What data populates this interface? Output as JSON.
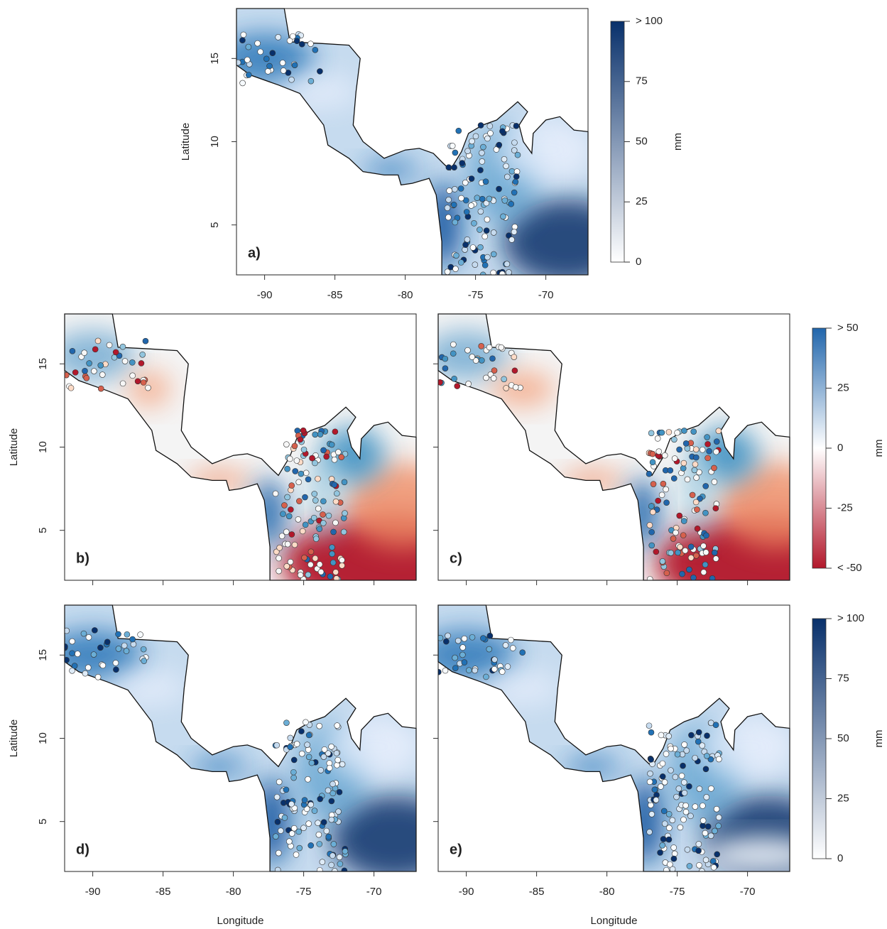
{
  "panels": [
    {
      "label": "a)"
    },
    {
      "label": "b)"
    },
    {
      "label": "c)"
    },
    {
      "label": "d)"
    },
    {
      "label": "e)"
    }
  ],
  "x_axis": {
    "title": "Longitude",
    "xlim": [
      -92,
      -67
    ],
    "ticks": [
      -90,
      -85,
      -80,
      -75,
      -70
    ]
  },
  "y_axis": {
    "title": "Latitude",
    "ylim": [
      2,
      18
    ],
    "ticks": [
      5,
      10,
      15
    ]
  },
  "colorbars": [
    {
      "unit": "mm",
      "colors": [
        "#ffffff",
        "#08306b"
      ],
      "ticks": [
        0,
        25,
        50,
        75,
        {
          "value": 100,
          "label": "> 100"
        }
      ]
    },
    {
      "unit": "mm",
      "colors": [
        "#b2182b",
        "#ffffff",
        "#2166ac"
      ],
      "ticks": [
        {
          "value": -50,
          "label": "< -50"
        },
        -25,
        0,
        25,
        {
          "value": 50,
          "label": "> 50"
        }
      ]
    },
    {
      "unit": "mm",
      "colors": [
        "#ffffff",
        "#08306b"
      ],
      "ticks": [
        0,
        25,
        50,
        75,
        {
          "value": 100,
          "label": "> 100"
        }
      ]
    }
  ]
}
